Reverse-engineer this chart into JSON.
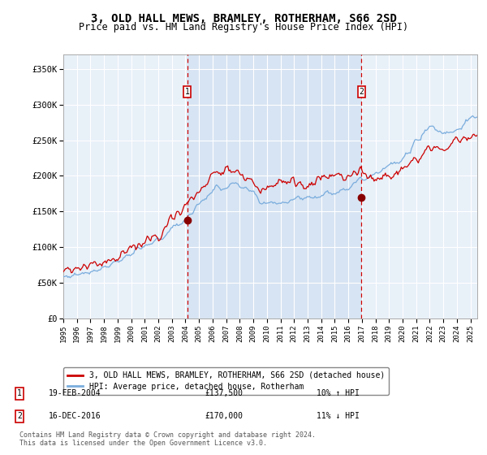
{
  "title": "3, OLD HALL MEWS, BRAMLEY, ROTHERHAM, S66 2SD",
  "subtitle": "Price paid vs. HM Land Registry's House Price Index (HPI)",
  "title_fontsize": 10,
  "subtitle_fontsize": 8.5,
  "background_color": "#ffffff",
  "plot_bg_color": "#ddeeff",
  "grid_color": "#cccccc",
  "ylim": [
    0,
    370000
  ],
  "yticks": [
    0,
    50000,
    100000,
    150000,
    200000,
    250000,
    300000,
    350000
  ],
  "ytick_labels": [
    "£0",
    "£50K",
    "£100K",
    "£150K",
    "£200K",
    "£250K",
    "£300K",
    "£350K"
  ],
  "sale1_date_num": 2004.13,
  "sale1_price": 137500,
  "sale1_label": "19-FEB-2004",
  "sale1_amount": "£137,500",
  "sale1_hpi": "10% ↑ HPI",
  "sale2_date_num": 2016.96,
  "sale2_price": 170000,
  "sale2_label": "16-DEC-2016",
  "sale2_amount": "£170,000",
  "sale2_hpi": "11% ↓ HPI",
  "line1_color": "#cc0000",
  "line2_color": "#7aaddd",
  "marker_color": "#880000",
  "dashed_color": "#cc0000",
  "footer_text": "Contains HM Land Registry data © Crown copyright and database right 2024.\nThis data is licensed under the Open Government Licence v3.0.",
  "legend1_label": "3, OLD HALL MEWS, BRAMLEY, ROTHERHAM, S66 2SD (detached house)",
  "legend2_label": "HPI: Average price, detached house, Rotherham"
}
